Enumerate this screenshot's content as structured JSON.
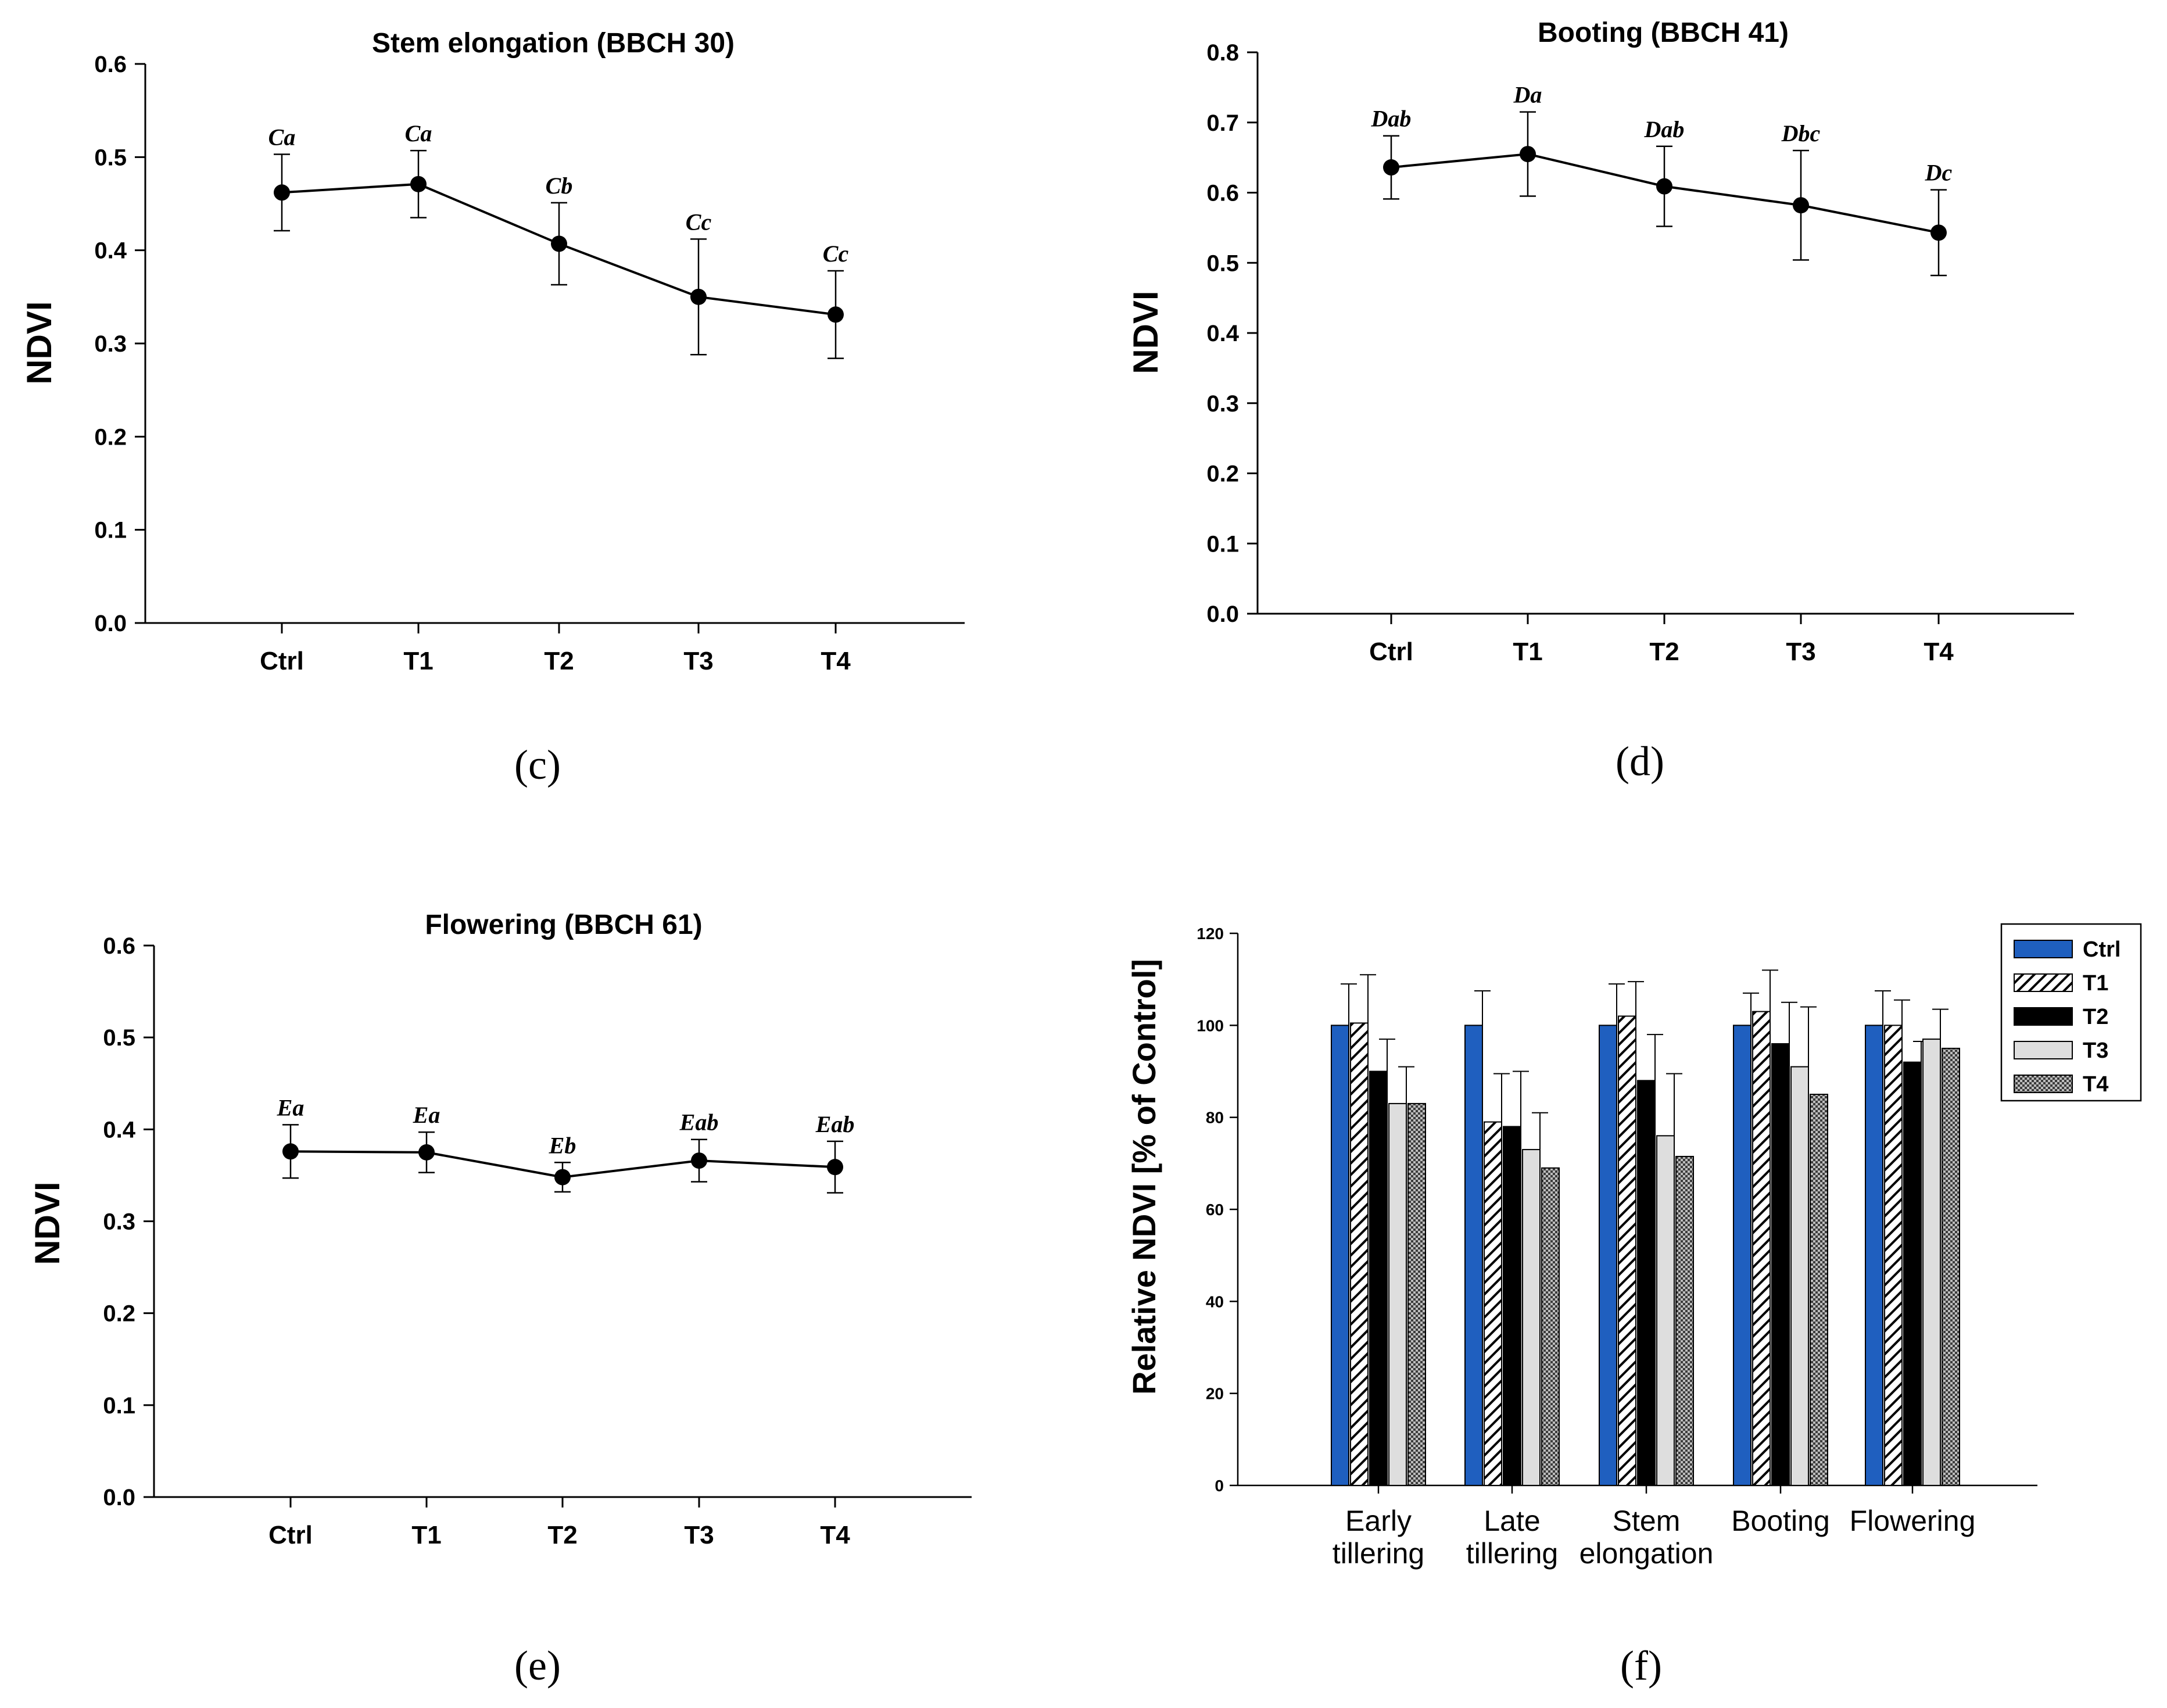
{
  "chart_data": [
    {
      "id": "c",
      "type": "line",
      "panel_label": "(c)",
      "title": "Stem elongation (BBCH 30)",
      "xlabel": "",
      "ylabel": "NDVI",
      "categories": [
        "Ctrl",
        "T1",
        "T2",
        "T3",
        "T4"
      ],
      "values": [
        0.462,
        0.471,
        0.407,
        0.35,
        0.331
      ],
      "errors": [
        0.041,
        0.036,
        0.044,
        0.062,
        0.047
      ],
      "annotations": [
        "Ca",
        "Ca",
        "Cb",
        "Cc",
        "Cc"
      ],
      "ylim": [
        0.0,
        0.6
      ],
      "yticks": [
        "0.0",
        "0.1",
        "0.2",
        "0.3",
        "0.4",
        "0.5",
        "0.6"
      ]
    },
    {
      "id": "d",
      "type": "line",
      "panel_label": "(d)",
      "title": "Booting (BBCH 41)",
      "xlabel": "",
      "ylabel": "NDVI",
      "categories": [
        "Ctrl",
        "T1",
        "T2",
        "T3",
        "T4"
      ],
      "values": [
        0.636,
        0.655,
        0.609,
        0.582,
        0.543
      ],
      "errors": [
        0.045,
        0.06,
        0.057,
        0.078,
        0.061
      ],
      "annotations": [
        "Dab",
        "Da",
        "Dab",
        "Dbc",
        "Dc"
      ],
      "ylim": [
        0.0,
        0.8
      ],
      "yticks": [
        "0.0",
        "0.1",
        "0.2",
        "0.3",
        "0.4",
        "0.5",
        "0.6",
        "0.7",
        "0.8"
      ]
    },
    {
      "id": "e",
      "type": "line",
      "panel_label": "(e)",
      "title": "Flowering (BBCH 61)",
      "xlabel": "",
      "ylabel": "NDVI",
      "categories": [
        "Ctrl",
        "T1",
        "T2",
        "T3",
        "T4"
      ],
      "values": [
        0.376,
        0.375,
        0.348,
        0.366,
        0.359
      ],
      "errors": [
        0.029,
        0.022,
        0.016,
        0.023,
        0.028
      ],
      "annotations": [
        "Ea",
        "Ea",
        "Eb",
        "Eab",
        "Eab"
      ],
      "ylim": [
        0.0,
        0.6
      ],
      "yticks": [
        "0.0",
        "0.1",
        "0.2",
        "0.3",
        "0.4",
        "0.5",
        "0.6"
      ]
    },
    {
      "id": "f",
      "type": "bar",
      "panel_label": "(f)",
      "title": "",
      "xlabel": "",
      "ylabel": "Relative NDVI [% of Control]",
      "categories": [
        [
          "Early",
          "tillering"
        ],
        [
          "Late",
          "tillering"
        ],
        [
          "Stem",
          "elongation"
        ],
        [
          "Booting"
        ],
        [
          "Flowering"
        ]
      ],
      "series": [
        {
          "name": "Ctrl",
          "values": [
            100,
            100,
            100,
            100,
            100
          ],
          "errors": [
            9,
            7.5,
            9,
            7,
            7.5
          ]
        },
        {
          "name": "T1",
          "values": [
            100.5,
            79,
            102,
            103,
            100
          ],
          "errors": [
            10.5,
            10.5,
            7.5,
            9,
            5.5
          ]
        },
        {
          "name": "T2",
          "values": [
            90,
            78,
            88,
            96,
            92
          ],
          "errors": [
            7,
            12,
            10,
            9,
            4.5
          ]
        },
        {
          "name": "T3",
          "values": [
            83,
            73,
            76,
            91,
            97
          ],
          "errors": [
            8,
            8,
            13.5,
            13,
            6.5
          ]
        },
        {
          "name": "T4",
          "values": [
            83,
            69,
            71.5,
            85,
            95
          ],
          "errors": [
            0,
            0,
            0,
            0,
            0
          ]
        }
      ],
      "ylim": [
        0,
        120
      ],
      "yticks": [
        "0",
        "20",
        "40",
        "60",
        "80",
        "100",
        "120"
      ],
      "legend_position": "top-right"
    }
  ]
}
